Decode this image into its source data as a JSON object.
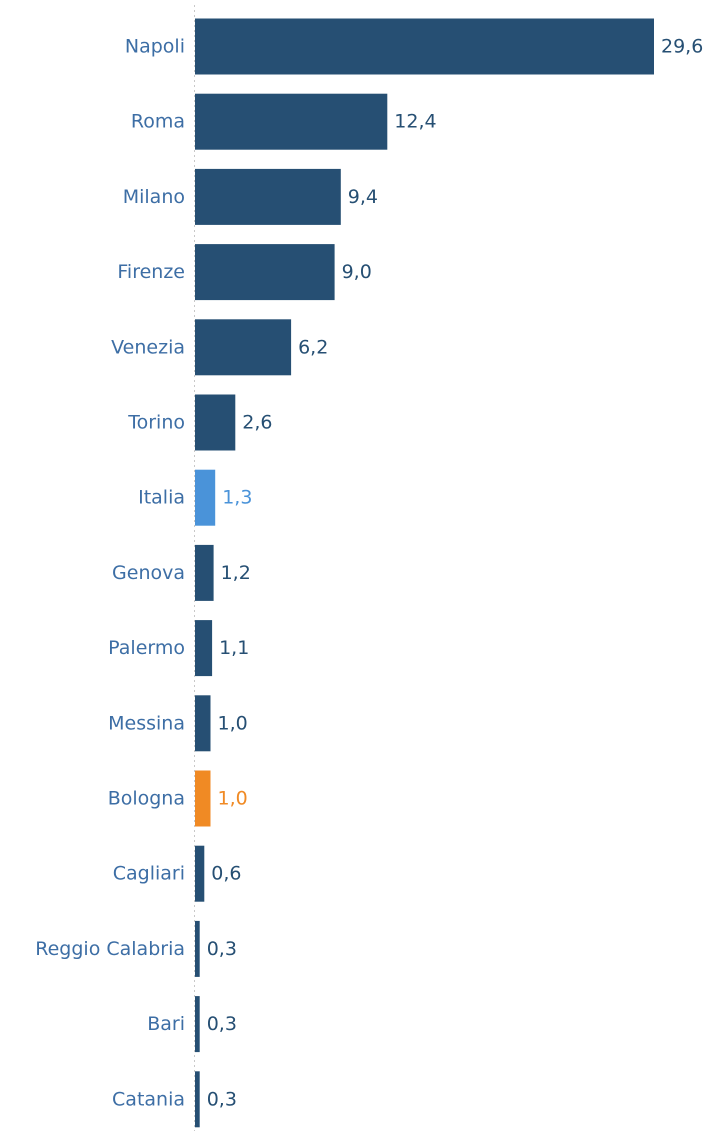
{
  "chart_data": {
    "type": "bar",
    "orientation": "horizontal",
    "categories": [
      "Napoli",
      "Roma",
      "Milano",
      "Firenze",
      "Venezia",
      "Torino",
      "Italia",
      "Genova",
      "Palermo",
      "Messina",
      "Bologna",
      "Cagliari",
      "Reggio Calabria",
      "Bari",
      "Catania"
    ],
    "values": [
      29.6,
      12.4,
      9.4,
      9.0,
      6.2,
      2.6,
      1.3,
      1.2,
      1.1,
      1.0,
      1.0,
      0.6,
      0.3,
      0.3,
      0.3
    ],
    "data_labels": [
      "29,6",
      "12,4",
      "9,4",
      "9,0",
      "6,2",
      "2,6",
      "1,3",
      "1,2",
      "1,1",
      "1,0",
      "1,0",
      "0,6",
      "0,3",
      "0,3",
      "0,3"
    ],
    "bar_colors": [
      "#264f73",
      "#264f73",
      "#264f73",
      "#264f73",
      "#264f73",
      "#264f73",
      "#4a93d9",
      "#264f73",
      "#264f73",
      "#264f73",
      "#f08a24",
      "#264f73",
      "#264f73",
      "#264f73",
      "#264f73"
    ],
    "label_colors": [
      "#264f73",
      "#264f73",
      "#264f73",
      "#264f73",
      "#264f73",
      "#264f73",
      "#4a93d9",
      "#264f73",
      "#264f73",
      "#264f73",
      "#f08a24",
      "#264f73",
      "#264f73",
      "#264f73",
      "#264f73"
    ],
    "category_label_color": "#3d6ea5",
    "xlim": [
      0,
      29.6
    ],
    "title": "",
    "xlabel": "",
    "ylabel": "",
    "grid": false,
    "legend": "none"
  }
}
